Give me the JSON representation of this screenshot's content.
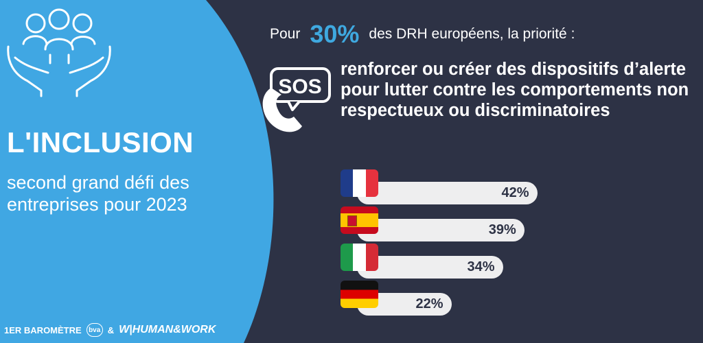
{
  "left_panel": {
    "title": "L'INCLUSION",
    "subtitle": "second grand défi des entreprises pour 2023",
    "bg_color": "#40a7e3"
  },
  "header": {
    "prefix": "Pour",
    "percent": "30%",
    "suffix": "des DRH européens, la priorité :",
    "accent_color": "#3fa9e0"
  },
  "lead_text": "renforcer ou créer des dispositifs d’alerte pour lutter contre les comportements non respectueux ou discriminatoires",
  "sos_icon": {
    "label": "SOS"
  },
  "footer": {
    "barometer": "1ER BAROMÈTRE",
    "bva_logo": "bva",
    "ampersand": "&",
    "hw_logo": "W|HUMAN&WORK"
  },
  "chart_data": {
    "type": "bar",
    "orientation": "horizontal",
    "categories": [
      "France",
      "Espagne",
      "Italie",
      "Allemagne"
    ],
    "values": [
      42,
      39,
      34,
      22
    ],
    "value_labels": [
      "42%",
      "39%",
      "34%",
      "22%"
    ],
    "flags": [
      "france-flag",
      "spain-flag",
      "italy-flag",
      "germany-flag"
    ],
    "unit": "%",
    "bar_color": "#eeeeef",
    "label_color": "#2d3245"
  }
}
